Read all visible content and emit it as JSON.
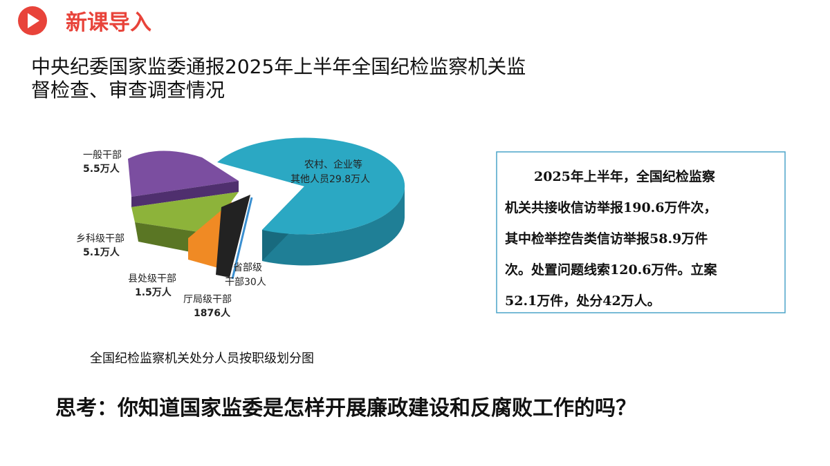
{
  "header": {
    "title": "新课导入"
  },
  "title_lines": [
    "中央纪委国家监委通报2025年上半年全国纪检监察机关监",
    "督检查、审查调查情况"
  ],
  "pie": {
    "labels": [
      {
        "lines": [
          "一般干部",
          "5.5万人"
        ]
      },
      {
        "lines": [
          "农村、企业等",
          "其他人员29.8万人"
        ]
      },
      {
        "lines": [
          "乡科级干部",
          "5.1万人"
        ]
      },
      {
        "lines": [
          "县处级干部",
          "1.5万人"
        ]
      },
      {
        "lines": [
          "省部级",
          "干部30人"
        ]
      },
      {
        "lines": [
          "厅局级干部",
          "1876人"
        ]
      }
    ],
    "caption": "全国纪检监察机关处分人员按职级划分图"
  },
  "box": {
    "lines": [
      "2025年上半年，全国纪检监察",
      "机关共接收信访举报190.6万件次，",
      "其中检举控告类信访举报58.9万件",
      "次。处置问题线索120.6万件。立案",
      "52.1万件，处分42万人。"
    ]
  },
  "question": "思考：你知道国家监委是怎样开展廉政建设和反腐败工作的吗？"
}
